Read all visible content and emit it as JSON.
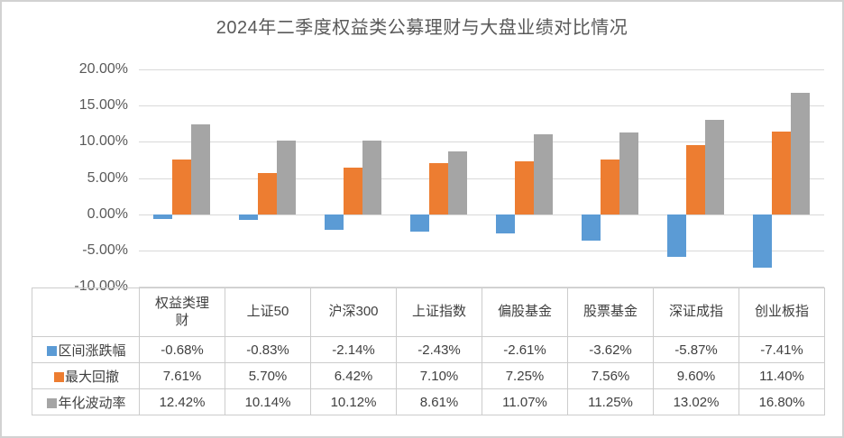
{
  "title": "2024年二季度权益类公募理财与大盘业绩对比情况",
  "colors": {
    "series_blue": "#5B9BD5",
    "series_orange": "#ED7D31",
    "series_gray": "#A5A5A5",
    "gridline": "#D9D9D9",
    "axis_text": "#595959",
    "table_text": "#404040",
    "table_border": "#CCCCCC"
  },
  "chart_data": {
    "type": "bar",
    "title": "2024年二季度权益类公募理财与大盘业绩对比情况",
    "categories": [
      "权益类理财",
      "上证50",
      "沪深300",
      "上证指数",
      "偏股基金",
      "股票基金",
      "深证成指",
      "创业板指"
    ],
    "series": [
      {
        "name": "区间涨跌幅",
        "color": "#5B9BD5",
        "values": [
          -0.68,
          -0.83,
          -2.14,
          -2.43,
          -2.61,
          -3.62,
          -5.87,
          -7.41
        ],
        "display": [
          "-0.68%",
          "-0.83%",
          "-2.14%",
          "-2.43%",
          "-2.61%",
          "-3.62%",
          "-5.87%",
          "-7.41%"
        ]
      },
      {
        "name": "最大回撤",
        "color": "#ED7D31",
        "values": [
          7.61,
          5.7,
          6.42,
          7.1,
          7.25,
          7.56,
          9.6,
          11.4
        ],
        "display": [
          "7.61%",
          "5.70%",
          "6.42%",
          "7.10%",
          "7.25%",
          "7.56%",
          "9.60%",
          "11.40%"
        ]
      },
      {
        "name": "年化波动率",
        "color": "#A5A5A5",
        "values": [
          12.42,
          10.14,
          10.12,
          8.61,
          11.07,
          11.25,
          13.02,
          16.8
        ],
        "display": [
          "12.42%",
          "10.14%",
          "10.12%",
          "8.61%",
          "11.07%",
          "11.25%",
          "13.02%",
          "16.80%"
        ]
      }
    ],
    "y_ticks": [
      "20.00%",
      "15.00%",
      "10.00%",
      "5.00%",
      "0.00%",
      "-5.00%",
      "-10.00%"
    ],
    "ylim": [
      -10,
      20
    ],
    "grid": true,
    "legend_position": "data-table-left-column",
    "xlabel": "",
    "ylabel": ""
  }
}
